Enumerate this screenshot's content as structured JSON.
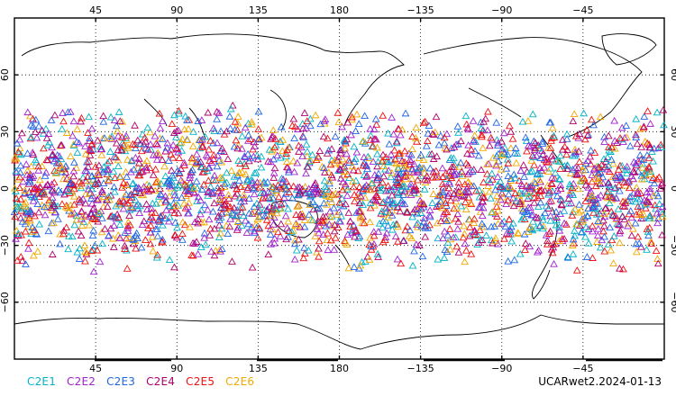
{
  "map": {
    "top_lon_labels": [
      "45",
      "90",
      "135",
      "180",
      "−135",
      "−90",
      "−45"
    ],
    "bottom_lon_labels": [
      "45",
      "90",
      "135",
      "180",
      "−135",
      "−90",
      "−45"
    ],
    "left_lat_labels": [
      "60",
      "30",
      "0",
      "−30",
      "−60"
    ],
    "right_lat_labels": [
      "60",
      "30",
      "0",
      "−30",
      "−60"
    ],
    "lon_range": [
      0,
      360
    ],
    "lat_range": [
      -90,
      90
    ],
    "grid": "dotted",
    "marker_shape": "open-triangle",
    "points_lat_band": [
      -45,
      45
    ]
  },
  "legend": {
    "items": [
      {
        "label": "C2E1",
        "color": "#00b3c6"
      },
      {
        "label": "C2E2",
        "color": "#a020d0"
      },
      {
        "label": "C2E3",
        "color": "#1f66e5"
      },
      {
        "label": "C2E4",
        "color": "#b0006a"
      },
      {
        "label": "C2E5",
        "color": "#ee1111"
      },
      {
        "label": "C2E6",
        "color": "#f2a900"
      }
    ]
  },
  "stamp": "UCARwet2.2024-01-13"
}
